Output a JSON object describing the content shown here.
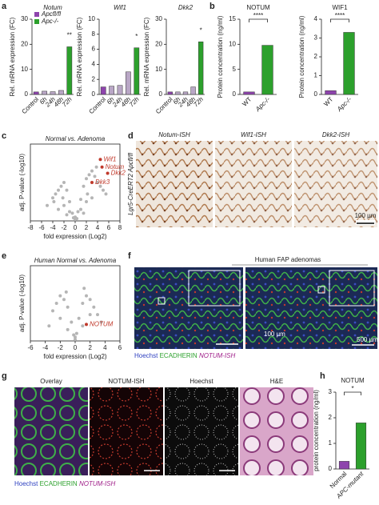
{
  "panel_labels": [
    "a",
    "b",
    "c",
    "d",
    "e",
    "f",
    "g",
    "h"
  ],
  "chart_data": [
    {
      "type": "bar",
      "title": "Notum",
      "ylabel": "Rel. mRNA expression (FC)",
      "categories": [
        "Control",
        "6h",
        "24h",
        "48h",
        "72h"
      ],
      "values": [
        1,
        1.3,
        1.1,
        1.6,
        19
      ],
      "colors": [
        "#8e44ad",
        "#b9a7c6",
        "#b9a7c6",
        "#b9a7c6",
        "#2ca02c"
      ],
      "ylim": [
        0,
        30
      ],
      "yticks": [
        0,
        10,
        20,
        30
      ],
      "annotation": "**",
      "legend": [
        {
          "name": "Apcfl/fl",
          "color": "#8e44ad"
        },
        {
          "name": "Apc-/-",
          "color": "#2ca02c"
        }
      ]
    },
    {
      "type": "bar",
      "title": "Wif1",
      "ylabel": "Rel. mRNA expression (FC)",
      "categories": [
        "Control",
        "6h",
        "24h",
        "48h",
        "72h"
      ],
      "values": [
        1,
        1.1,
        1.2,
        3,
        6.2
      ],
      "colors": [
        "#8e44ad",
        "#b9a7c6",
        "#b9a7c6",
        "#b9a7c6",
        "#2ca02c"
      ],
      "ylim": [
        0,
        10
      ],
      "yticks": [
        0,
        2,
        4,
        6,
        8,
        10
      ],
      "annotation": "*"
    },
    {
      "type": "bar",
      "title": "Dkk2",
      "ylabel": "Rel. mRNA expression (FC)",
      "categories": [
        "Control",
        "6h",
        "24h",
        "48h",
        "72h"
      ],
      "values": [
        1,
        1,
        1,
        3,
        21
      ],
      "colors": [
        "#8e44ad",
        "#b9a7c6",
        "#b9a7c6",
        "#b9a7c6",
        "#2ca02c"
      ],
      "ylim": [
        0,
        30
      ],
      "yticks": [
        0,
        10,
        20,
        30
      ],
      "annotation": "*"
    },
    {
      "type": "bar",
      "title": "NOTUM",
      "ylabel": "Protein concentration (ng/ml)",
      "categories": [
        "WT",
        "Apc-/-"
      ],
      "values": [
        0.5,
        9.8
      ],
      "colors": [
        "#8e44ad",
        "#2ca02c"
      ],
      "ylim": [
        0,
        15
      ],
      "yticks": [
        0,
        5,
        10,
        15
      ],
      "annotation": "****",
      "significance_bracket": true
    },
    {
      "type": "bar",
      "title": "WIF1",
      "ylabel": "Protein concentration (ng/ml)",
      "categories": [
        "WT",
        "Apc-/-"
      ],
      "values": [
        0.2,
        3.3
      ],
      "colors": [
        "#8e44ad",
        "#2ca02c"
      ],
      "ylim": [
        0,
        4
      ],
      "yticks": [
        0,
        1,
        2,
        3,
        4
      ],
      "annotation": "****",
      "significance_bracket": true
    },
    {
      "type": "scatter",
      "title": "Normal vs. Adenoma",
      "xlabel": "fold expression (Log2)",
      "ylabel": "adj. P-value (-log10)",
      "color": "#b5b5b5",
      "x": [
        -4,
        -3.5,
        -3,
        -2.5,
        -2,
        -1.5,
        -1,
        -0.5,
        0,
        0.5,
        1,
        1.5,
        2,
        2.5,
        3,
        3.5,
        4,
        4.5,
        5,
        -2,
        -1,
        0,
        1,
        2,
        3,
        -3,
        -1.5,
        1.5,
        0.3,
        -0.3,
        2.2,
        -2.2,
        3.8,
        -3.8,
        5.5,
        -5
      ],
      "y": [
        30,
        35,
        40,
        45,
        50,
        40,
        25,
        10,
        5,
        12,
        28,
        45,
        55,
        60,
        65,
        58,
        50,
        45,
        40,
        20,
        12,
        2,
        15,
        25,
        30,
        15,
        8,
        10,
        3,
        4,
        35,
        30,
        70,
        25,
        35,
        20
      ],
      "xlim": [
        -8,
        8
      ],
      "xticks": [
        -8,
        -6,
        -4,
        -2,
        0,
        2,
        4,
        6,
        8
      ],
      "ylim": [
        0,
        100
      ],
      "highlights": {
        "labels": [
          "Wif1",
          "Notum",
          "Dkk2",
          "Dkk3"
        ],
        "x": [
          4.5,
          4.8,
          5.8,
          3
        ],
        "y": [
          80,
          70,
          62,
          50
        ],
        "color": "#c0392b"
      }
    },
    {
      "type": "scatter",
      "title": "Human Normal vs. Adenoma",
      "xlabel": "fold expression (Log2)",
      "ylabel": "adj. P-value (-log10)",
      "color": "#b5b5b5",
      "x": [
        -3,
        -2.5,
        -2,
        -1.5,
        -1,
        -0.5,
        0,
        0.5,
        1,
        1.5,
        2,
        2.5,
        3,
        -1,
        0,
        1,
        -2,
        2,
        0.2,
        -0.2,
        3.5,
        -3.5,
        1.2,
        -1.2
      ],
      "y": [
        40,
        50,
        60,
        55,
        45,
        25,
        5,
        30,
        50,
        60,
        55,
        45,
        35,
        15,
        2,
        20,
        30,
        35,
        10,
        8,
        25,
        20,
        70,
        65
      ],
      "xlim": [
        -6,
        6
      ],
      "xticks": [
        -6,
        -4,
        -2,
        0,
        2,
        4,
        6
      ],
      "ylim": [
        0,
        100
      ],
      "highlights": {
        "labels": [
          "NOTUM"
        ],
        "x": [
          1.5
        ],
        "y": [
          22
        ],
        "color": "#c0392b"
      }
    },
    {
      "type": "bar",
      "title": "NOTUM",
      "ylabel": "protein concentration (ng/ml)",
      "categories": [
        "Normal",
        "APC-mutant"
      ],
      "values": [
        0.3,
        1.8
      ],
      "colors": [
        "#8e44ad",
        "#2ca02c"
      ],
      "ylim": [
        0,
        3
      ],
      "yticks": [
        0,
        1,
        2,
        3
      ],
      "annotation": "*",
      "significance_bracket": true
    }
  ],
  "panel_d": {
    "captions": [
      "Notum-ISH",
      "Wif1-ISH",
      "Dkk2-ISH"
    ],
    "side_label": "Lgr5-CreERT2 Apcfl/fl",
    "scale": "100 µm"
  },
  "panel_f": {
    "title": "Human FAP adenomas",
    "legend": [
      "Hoechst",
      "ECADHERIN",
      "NOTUM-ISH"
    ],
    "scales": [
      "100 µm",
      "500 µm"
    ]
  },
  "panel_g": {
    "captions": [
      "Overlay",
      "NOTUM-ISH",
      "Hoechst",
      "H&E"
    ],
    "legend": [
      "Hoechst",
      "ECADHERIN",
      "NOTUM-ISH"
    ]
  }
}
